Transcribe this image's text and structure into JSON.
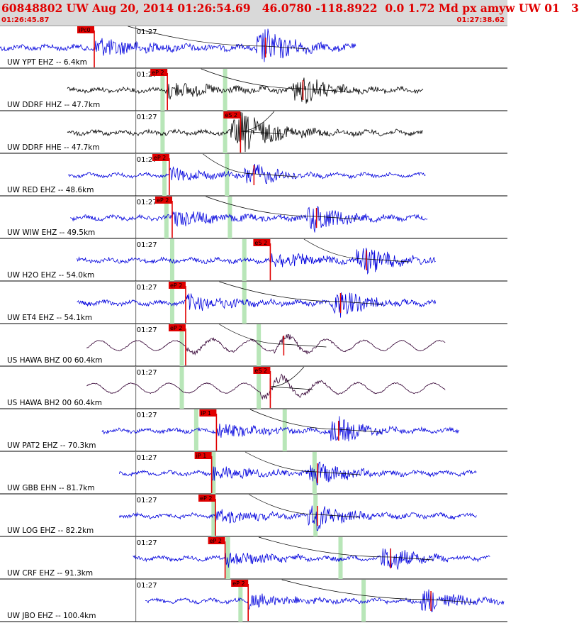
{
  "header": {
    "title": "60848802 UW Aug 20, 2014 01:26:54.69   46.0780 -118.8922  0.0 1.72 Md px amyw UW 01   3",
    "start_time": "01:26:45.87",
    "end_time": "01:27:38.62"
  },
  "chart_data": {
    "type": "line",
    "title": "60848802 UW Aug 20, 2014 01:26:54.69   46.0780 -118.8922  0.0 1.72 Md px amyw UW 01   3",
    "x_unit": "seconds after 01:26:45.87",
    "x_range": [
      0,
      52.75
    ],
    "minute_tick_label": "01:27",
    "minute_tick_x": 14.13,
    "pick_color": "#e00000",
    "marker_color": "#b8e6b8",
    "channels": [
      {
        "label": "UW YPT EHZ -- 6.4km",
        "color": "#0000dd",
        "span": [
          0,
          37.0
        ],
        "amplitude": 0.5,
        "picks": [
          {
            "label": "iPc0",
            "t": 9.8
          }
        ],
        "s_time": 27.6,
        "markers": []
      },
      {
        "label": "UW DDRF HHZ -- 47.7km",
        "color": "#000000",
        "span": [
          7.0,
          44.0
        ],
        "amplitude": 0.4,
        "picks": [
          {
            "label": "eP 2",
            "t": 17.4
          }
        ],
        "s_time": 31.5,
        "markers": [
          16.9,
          23.4
        ]
      },
      {
        "label": "UW DDRF HHE -- 47.7km",
        "color": "#000000",
        "span": [
          7.0,
          44.0
        ],
        "amplitude": 0.4,
        "picks": [
          {
            "label": "eS 2",
            "t": 25.0
          }
        ],
        "s_time": 25.0,
        "markers": [
          16.9,
          23.4
        ]
      },
      {
        "label": "UW RED EHZ -- 48.6km",
        "color": "#0000dd",
        "span": [
          7.1,
          44.3
        ],
        "amplitude": 0.3,
        "picks": [
          {
            "label": "eP 2",
            "t": 17.6
          }
        ],
        "s_time": 26.4,
        "markers": [
          17.1,
          23.6
        ]
      },
      {
        "label": "UW WIW EHZ -- 49.5km",
        "color": "#0000dd",
        "span": [
          7.3,
          44.5
        ],
        "amplitude": 0.4,
        "picks": [
          {
            "label": "eP 2",
            "t": 17.9
          }
        ],
        "s_time": 32.9,
        "markers": [
          17.3,
          23.9
        ]
      },
      {
        "label": "UW H2O EHZ -- 54.0km",
        "color": "#0000dd",
        "span": [
          8.0,
          45.3
        ],
        "amplitude": 0.4,
        "picks": [
          {
            "label": "eS 2",
            "t": 28.1
          }
        ],
        "s_time": 38.1,
        "markers": [
          17.9,
          25.4
        ]
      },
      {
        "label": "UW ET4 EHZ -- 54.1km",
        "color": "#0000dd",
        "span": [
          8.0,
          45.3
        ],
        "amplitude": 0.4,
        "picks": [
          {
            "label": "eP 2",
            "t": 19.3
          }
        ],
        "s_time": 35.4,
        "markers": [
          17.9,
          25.4
        ]
      },
      {
        "label": "US HAWA BHZ 00 60.4km",
        "color": "#330033",
        "span": [
          9.0,
          46.3
        ],
        "amplitude": 0.4,
        "picks": [
          {
            "label": "eP 2",
            "t": 19.3
          }
        ],
        "s_time": 29.5,
        "markers": [
          18.9,
          26.9
        ]
      },
      {
        "label": "US HAWA BH2 00 60.4km",
        "color": "#330033",
        "span": [
          9.0,
          46.3
        ],
        "amplitude": 0.4,
        "picks": [
          {
            "label": "eS 2",
            "t": 28.1
          }
        ],
        "s_time": 28.1,
        "markers": [
          18.9,
          26.9
        ]
      },
      {
        "label": "UW PAT2 EHZ -- 70.3km",
        "color": "#0000dd",
        "span": [
          10.6,
          47.8
        ],
        "amplitude": 0.35,
        "picks": [
          {
            "label": "iP 1",
            "t": 22.5
          }
        ],
        "s_time": 35.2,
        "markers": [
          20.4,
          29.6
        ]
      },
      {
        "label": "UW GBB EHN -- 81.7km",
        "color": "#0000dd",
        "span": [
          12.4,
          49.6
        ],
        "amplitude": 0.35,
        "picks": [
          {
            "label": "iP 1",
            "t": 22.0
          }
        ],
        "s_time": 33.0,
        "markers": [
          22.2,
          32.7
        ]
      },
      {
        "label": "UW LOG EHZ -- 82.2km",
        "color": "#0000dd",
        "span": [
          12.4,
          49.6
        ],
        "amplitude": 0.35,
        "picks": [
          {
            "label": "eP 2",
            "t": 22.4
          }
        ],
        "s_time": 33.0,
        "markers": [
          22.2,
          32.8
        ]
      },
      {
        "label": "UW CRF EHZ -- 91.3km",
        "color": "#0000dd",
        "span": [
          13.8,
          51.0
        ],
        "amplitude": 0.35,
        "picks": [
          {
            "label": "eP 2",
            "t": 23.4
          }
        ],
        "s_time": 40.6,
        "markers": [
          23.7,
          35.4
        ]
      },
      {
        "label": "UW JBO EHZ -- 100.4km",
        "color": "#0000dd",
        "span": [
          15.1,
          52.4
        ],
        "amplitude": 0.35,
        "picks": [
          {
            "label": "eP 2",
            "t": 25.8
          }
        ],
        "s_time": 44.8,
        "markers": [
          25.0,
          37.8
        ]
      }
    ]
  }
}
